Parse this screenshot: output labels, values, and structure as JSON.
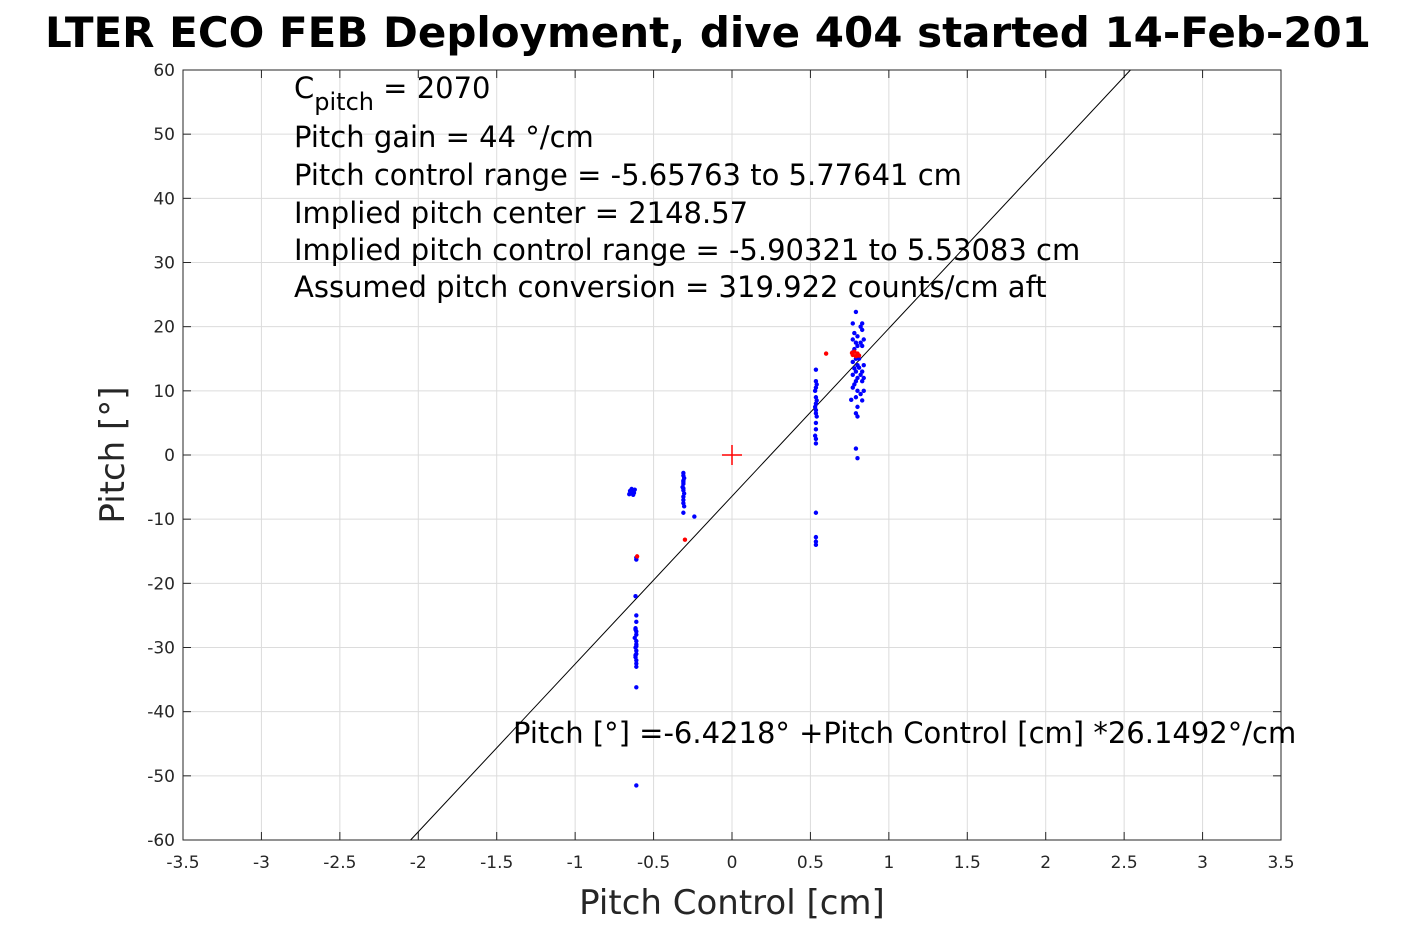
{
  "chart_data": {
    "type": "scatter",
    "title": "LTER ECO FEB Deployment, dive 404 started 14-Feb-201",
    "xlabel": "Pitch Control [cm]",
    "ylabel": "Pitch [°]",
    "xlim": [
      -3.5,
      3.5
    ],
    "ylim": [
      -60,
      60
    ],
    "xticks": [
      "-3.5",
      "-3",
      "-2.5",
      "-2",
      "-1.5",
      "-1",
      "-0.5",
      "0",
      "0.5",
      "1",
      "1.5",
      "2",
      "2.5",
      "3",
      "3.5"
    ],
    "yticks": [
      "60",
      "50",
      "40",
      "30",
      "20",
      "10",
      "0",
      "-10",
      "-20",
      "-30",
      "-40",
      "-50",
      "-60"
    ],
    "grid": true,
    "annotations": {
      "c_pitch_symbol": "C",
      "c_pitch_subscript": "pitch",
      "c_pitch_value": " = 2070",
      "lines": [
        "Pitch gain = 44 °/cm",
        "Pitch control range = -5.65763 to 5.77641 cm",
        "Implied pitch center = 2148.57",
        "Implied pitch control range = -5.90321 to 5.53083 cm",
        "Assumed pitch conversion = 319.922 counts/cm aft"
      ],
      "fit_equation": "Pitch [°] =-6.4218° +Pitch Control [cm] *26.1492°/cm"
    },
    "fit_line": {
      "intercept": -6.4218,
      "slope": 26.1492,
      "color": "#000000"
    },
    "center_marker": {
      "x": 0,
      "y": 0,
      "color": "#ff0000"
    },
    "series": [
      {
        "color": "#0000ff",
        "points": [
          [
            -0.64,
            -5.5
          ],
          [
            -0.645,
            -5.8
          ],
          [
            -0.635,
            -6.0
          ],
          [
            -0.65,
            -5.6
          ],
          [
            -0.63,
            -6.2
          ],
          [
            -0.64,
            -5.3
          ],
          [
            -0.625,
            -5.9
          ],
          [
            -0.655,
            -6.1
          ],
          [
            -0.635,
            -5.7
          ],
          [
            -0.62,
            -5.4
          ],
          [
            -0.61,
            -16.0
          ],
          [
            -0.61,
            -16.3
          ],
          [
            -0.615,
            -22.0
          ],
          [
            -0.61,
            -25.0
          ],
          [
            -0.61,
            -26.0
          ],
          [
            -0.615,
            -27.0
          ],
          [
            -0.61,
            -27.5
          ],
          [
            -0.61,
            -28.0
          ],
          [
            -0.62,
            -28.5
          ],
          [
            -0.61,
            -29.0
          ],
          [
            -0.61,
            -29.5
          ],
          [
            -0.615,
            -30.0
          ],
          [
            -0.61,
            -30.5
          ],
          [
            -0.61,
            -31.0
          ],
          [
            -0.615,
            -31.5
          ],
          [
            -0.61,
            -32.0
          ],
          [
            -0.61,
            -32.5
          ],
          [
            -0.61,
            -33.0
          ],
          [
            -0.615,
            -27.2
          ],
          [
            -0.61,
            -29.8
          ],
          [
            -0.615,
            -31.2
          ],
          [
            -0.61,
            -36.2
          ],
          [
            -0.61,
            -51.5
          ],
          [
            -0.31,
            -2.8
          ],
          [
            -0.31,
            -3.2
          ],
          [
            -0.305,
            -3.6
          ],
          [
            -0.31,
            -4.0
          ],
          [
            -0.31,
            -4.5
          ],
          [
            -0.315,
            -5.0
          ],
          [
            -0.31,
            -5.5
          ],
          [
            -0.305,
            -6.0
          ],
          [
            -0.31,
            -6.5
          ],
          [
            -0.31,
            -7.0
          ],
          [
            -0.31,
            -7.5
          ],
          [
            -0.305,
            -8.0
          ],
          [
            -0.31,
            -9.0
          ],
          [
            -0.31,
            -4.2
          ],
          [
            -0.31,
            -5.2
          ],
          [
            -0.24,
            -9.6
          ],
          [
            0.535,
            13.3
          ],
          [
            0.535,
            11.5
          ],
          [
            0.54,
            11.0
          ],
          [
            0.535,
            10.5
          ],
          [
            0.53,
            10.0
          ],
          [
            0.535,
            9.0
          ],
          [
            0.54,
            8.5
          ],
          [
            0.535,
            8.0
          ],
          [
            0.53,
            7.5
          ],
          [
            0.535,
            7.0
          ],
          [
            0.535,
            6.5
          ],
          [
            0.54,
            6.0
          ],
          [
            0.535,
            5.0
          ],
          [
            0.535,
            4.0
          ],
          [
            0.53,
            3.0
          ],
          [
            0.535,
            2.5
          ],
          [
            0.535,
            1.8
          ],
          [
            0.535,
            -9.0
          ],
          [
            0.535,
            -12.8
          ],
          [
            0.535,
            -13.5
          ],
          [
            0.535,
            -14.0
          ],
          [
            0.79,
            22.3
          ],
          [
            0.77,
            20.5
          ],
          [
            0.78,
            19.0
          ],
          [
            0.8,
            18.5
          ],
          [
            0.77,
            18.0
          ],
          [
            0.79,
            17.5
          ],
          [
            0.8,
            17.0
          ],
          [
            0.78,
            16.5
          ],
          [
            0.77,
            16.0
          ],
          [
            0.8,
            15.5
          ],
          [
            0.79,
            15.0
          ],
          [
            0.77,
            14.5
          ],
          [
            0.8,
            14.0
          ],
          [
            0.78,
            13.5
          ],
          [
            0.79,
            13.0
          ],
          [
            0.77,
            12.5
          ],
          [
            0.8,
            12.0
          ],
          [
            0.79,
            11.5
          ],
          [
            0.78,
            11.0
          ],
          [
            0.77,
            10.5
          ],
          [
            0.8,
            10.0
          ],
          [
            0.79,
            9.0
          ],
          [
            0.76,
            8.6
          ],
          [
            0.8,
            7.5
          ],
          [
            0.79,
            6.5
          ],
          [
            0.8,
            6.0
          ],
          [
            0.79,
            1.0
          ],
          [
            0.8,
            -0.5
          ],
          [
            0.83,
            20.5
          ],
          [
            0.82,
            20.0
          ],
          [
            0.83,
            19.5
          ],
          [
            0.84,
            18.0
          ],
          [
            0.82,
            17.5
          ],
          [
            0.83,
            17.0
          ],
          [
            0.84,
            14.0
          ],
          [
            0.83,
            13.0
          ],
          [
            0.82,
            12.5
          ],
          [
            0.84,
            12.0
          ],
          [
            0.83,
            11.5
          ],
          [
            0.84,
            10.0
          ],
          [
            0.82,
            9.5
          ],
          [
            0.83,
            8.5
          ],
          [
            0.81,
            15.0
          ],
          [
            0.81,
            13.6
          ]
        ]
      },
      {
        "color": "#ff0000",
        "points": [
          [
            -0.605,
            -15.8
          ],
          [
            -0.3,
            -13.2
          ],
          [
            0.6,
            15.8
          ],
          [
            0.77,
            15.6
          ],
          [
            0.78,
            16.1
          ],
          [
            0.79,
            15.4
          ],
          [
            0.8,
            15.8
          ],
          [
            0.81,
            15.5
          ],
          [
            0.765,
            15.9
          ]
        ]
      }
    ]
  }
}
